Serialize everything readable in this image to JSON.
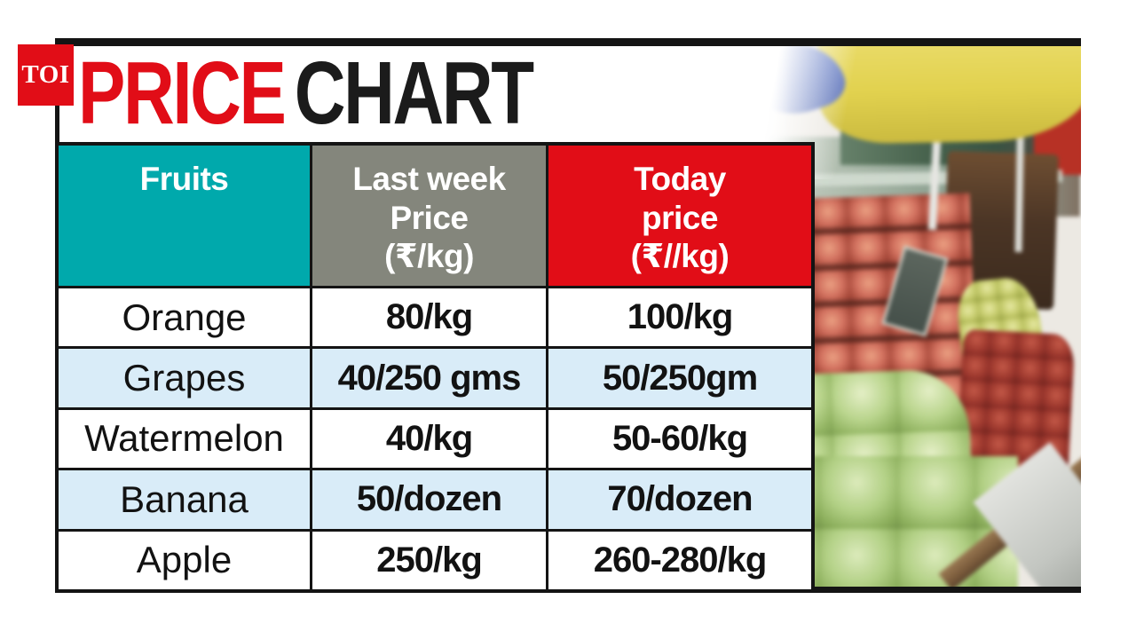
{
  "logo": {
    "text": "TOI"
  },
  "title": {
    "word_red": "PRICE",
    "word_black": "CHART"
  },
  "colors": {
    "teal": "#00a9ac",
    "gray": "#84867c",
    "red": "#e10d17",
    "row_alt": "#d9ecf8",
    "black": "#141414"
  },
  "table": {
    "headers": {
      "fruits": "Fruits",
      "last_week": "Last week\nPrice\n(₹/kg)",
      "today": "Today\nprice\n(₹//kg)"
    },
    "rows": [
      {
        "fruit": "Orange",
        "last_week": "80/kg",
        "today": "100/kg"
      },
      {
        "fruit": "Grapes",
        "last_week": "40/250 gms",
        "today": "50/250gm"
      },
      {
        "fruit": "Watermelon",
        "last_week": "40/kg",
        "today": "50-60/kg"
      },
      {
        "fruit": "Banana",
        "last_week": "50/dozen",
        "today": "70/dozen"
      },
      {
        "fruit": "Apple",
        "last_week": "250/kg",
        "today": "260-280/kg"
      }
    ]
  },
  "photo": {
    "description": "Fruit market stall with blue and yellow umbrellas, tiered stacks of red apples, hanging grapes and a pile of green guavas"
  },
  "chart_data": {
    "type": "table",
    "title": "PRICE CHART",
    "columns": [
      "Fruits",
      "Last week Price (₹/kg)",
      "Today price (₹//kg)"
    ],
    "rows": [
      [
        "Orange",
        "80/kg",
        "100/kg"
      ],
      [
        "Grapes",
        "40/250 gms",
        "50/250gm"
      ],
      [
        "Watermelon",
        "40/kg",
        "50-60/kg"
      ],
      [
        "Banana",
        "50/dozen",
        "70/dozen"
      ],
      [
        "Apple",
        "250/kg",
        "260-280/kg"
      ]
    ]
  }
}
